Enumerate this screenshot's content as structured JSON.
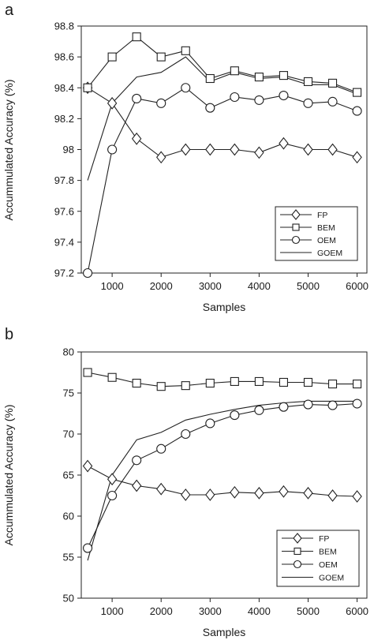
{
  "chart_data": [
    {
      "panel": "a",
      "type": "line",
      "xlabel": "Samples",
      "ylabel": "Accummulated Accuracy (%)",
      "x": [
        500,
        1000,
        1500,
        2000,
        2500,
        3000,
        3500,
        4000,
        4500,
        5000,
        5500,
        6000
      ],
      "xticks": [
        "1000",
        "2000",
        "3000",
        "4000",
        "5000",
        "6000"
      ],
      "xlim": [
        370,
        6200
      ],
      "yticks": [
        "97.2",
        "97.4",
        "97.6",
        "97.8",
        "98",
        "98.2",
        "98.4",
        "98.6",
        "98.8"
      ],
      "ylim": [
        97.2,
        98.8
      ],
      "legend_position": "bottom-right",
      "grid": false,
      "series": [
        {
          "name": "FP",
          "marker": "diamond",
          "values": [
            98.4,
            98.3,
            98.07,
            97.95,
            98.0,
            98.0,
            98.0,
            97.98,
            98.04,
            98.0,
            98.0,
            97.95
          ]
        },
        {
          "name": "BEM",
          "marker": "square",
          "values": [
            98.4,
            98.6,
            98.73,
            98.6,
            98.64,
            98.46,
            98.51,
            98.47,
            98.48,
            98.44,
            98.43,
            98.37
          ]
        },
        {
          "name": "OEM",
          "marker": "circle",
          "values": [
            97.2,
            98.0,
            98.33,
            98.3,
            98.4,
            98.27,
            98.34,
            98.32,
            98.35,
            98.3,
            98.31,
            98.25
          ]
        },
        {
          "name": "GOEM",
          "marker": "none",
          "values": [
            97.8,
            98.3,
            98.47,
            98.5,
            98.6,
            98.44,
            98.5,
            98.46,
            98.47,
            98.42,
            98.42,
            98.36
          ]
        }
      ]
    },
    {
      "panel": "b",
      "type": "line",
      "xlabel": "Samples",
      "ylabel": "Accummulated Accuracy (%)",
      "x": [
        500,
        1000,
        1500,
        2000,
        2500,
        3000,
        3500,
        4000,
        4500,
        5000,
        5500,
        6000
      ],
      "xticks": [
        "1000",
        "2000",
        "3000",
        "4000",
        "5000",
        "6000"
      ],
      "xlim": [
        370,
        6200
      ],
      "yticks": [
        "50",
        "55",
        "60",
        "65",
        "70",
        "75",
        "80"
      ],
      "ylim": [
        50,
        80
      ],
      "legend_position": "bottom-right",
      "grid": false,
      "series": [
        {
          "name": "FP",
          "marker": "diamond",
          "values": [
            66.1,
            64.5,
            63.7,
            63.3,
            62.6,
            62.6,
            62.9,
            62.8,
            63.0,
            62.8,
            62.5,
            62.4
          ]
        },
        {
          "name": "BEM",
          "marker": "square",
          "values": [
            77.5,
            76.9,
            76.2,
            75.8,
            75.9,
            76.2,
            76.4,
            76.4,
            76.3,
            76.3,
            76.1,
            76.1
          ]
        },
        {
          "name": "OEM",
          "marker": "circle",
          "values": [
            56.1,
            62.5,
            66.8,
            68.2,
            70.0,
            71.3,
            72.3,
            72.9,
            73.3,
            73.6,
            73.5,
            73.7
          ]
        },
        {
          "name": "GOEM",
          "marker": "none",
          "values": [
            54.6,
            65.0,
            69.3,
            70.2,
            71.7,
            72.4,
            73.0,
            73.5,
            73.8,
            74.0,
            74.0,
            74.0
          ]
        }
      ]
    }
  ]
}
